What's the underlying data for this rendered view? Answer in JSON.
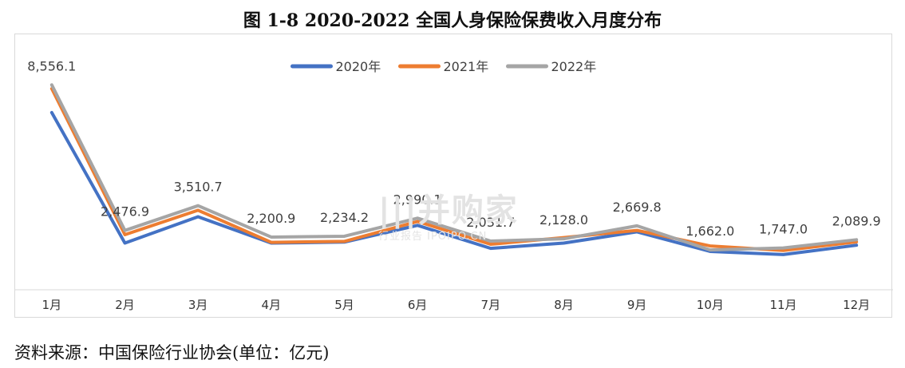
{
  "title": "图 1-8  2020-2022 全国人身保险保费收入月度分布",
  "source": "资料来源：中国保险行业协会(单位：亿元)",
  "watermark": {
    "main": "|||并购家",
    "sub": "行业报告 IPOIPO.CN"
  },
  "chart_data": {
    "type": "line",
    "title": "图 1-8  2020-2022 全国人身保险保费收入月度分布",
    "xlabel": "",
    "ylabel": "",
    "ylim": [
      0,
      10000
    ],
    "grid": false,
    "legend_position": "top",
    "categories": [
      "1月",
      "2月",
      "3月",
      "4月",
      "5月",
      "6月",
      "7月",
      "8月",
      "9月",
      "10月",
      "11月",
      "12月"
    ],
    "series": [
      {
        "name": "2020年",
        "color": "#4472C4",
        "values": [
          7400,
          1950,
          3050,
          1950,
          1990,
          2690,
          1730,
          1950,
          2420,
          1600,
          1470,
          1860
        ]
      },
      {
        "name": "2021年",
        "color": "#ED7D31",
        "values": [
          8400,
          2300,
          3320,
          1980,
          2020,
          2850,
          1900,
          2180,
          2480,
          1830,
          1640,
          2000
        ]
      },
      {
        "name": "2022年",
        "color": "#A5A5A5",
        "values": [
          8556.1,
          2476.9,
          3510.7,
          2200.9,
          2234.2,
          2990.1,
          2031.7,
          2128.0,
          2669.8,
          1662.0,
          1747.0,
          2089.9
        ]
      }
    ],
    "data_labels": [
      "8,556.1",
      "2,476.9",
      "3,510.7",
      "2,200.9",
      "2,234.2",
      "2,990.1",
      "2,031.7",
      "2,128.0",
      "2,669.8",
      "1,662.0",
      "1,747.0",
      "2,089.9"
    ]
  }
}
